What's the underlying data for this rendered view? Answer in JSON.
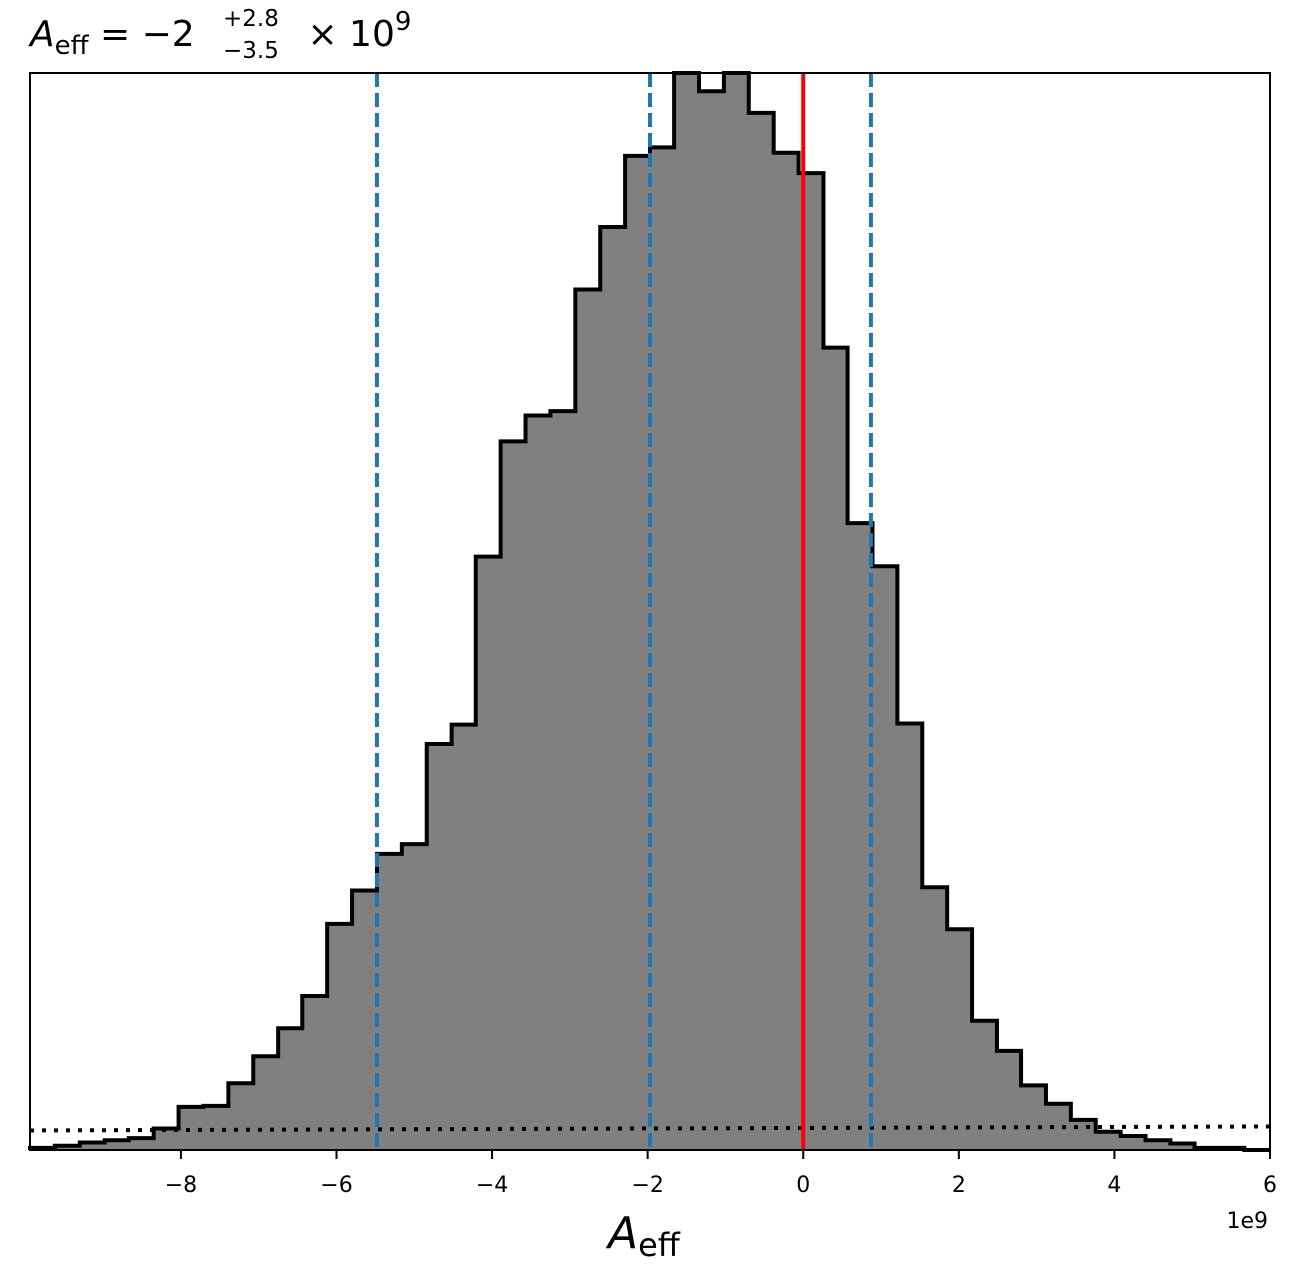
{
  "chart_data": {
    "type": "histogram",
    "title": {
      "symbol": "A",
      "subscript": "eff",
      "equals": " = ",
      "median": "−2",
      "err_plus": "+2.8",
      "err_minus": "−3.5",
      "times": " × 10",
      "exponent": "9"
    },
    "xlabel": {
      "symbol": "A",
      "subscript": "eff"
    },
    "x_offset_label": "1e9",
    "xlim": [
      -9.94,
      6
    ],
    "ylim": [
      0,
      1
    ],
    "x_ticks": [
      -8,
      -6,
      -4,
      -2,
      0,
      2,
      4,
      6
    ],
    "x_tick_labels": [
      "−8",
      "−6",
      "−4",
      "−2",
      "0",
      "2",
      "4",
      "6"
    ],
    "bin_edges": [
      -9.94,
      -9.62,
      -9.3,
      -8.98,
      -8.67,
      -8.35,
      -8.03,
      -7.71,
      -7.39,
      -7.07,
      -6.75,
      -6.44,
      -6.12,
      -5.8,
      -5.48,
      -5.16,
      -4.84,
      -4.52,
      -4.21,
      -3.89,
      -3.57,
      -3.25,
      -2.93,
      -2.61,
      -2.29,
      -1.97,
      -1.66,
      -1.34,
      -1.02,
      -0.7,
      -0.38,
      -0.06,
      0.26,
      0.57,
      0.89,
      1.21,
      1.53,
      1.85,
      2.17,
      2.49,
      2.8,
      3.12,
      3.44,
      3.76,
      4.08,
      4.4,
      4.72,
      5.03,
      5.35,
      5.67,
      6.0
    ],
    "counts": [
      0.002,
      0.004,
      0.007,
      0.009,
      0.011,
      0.02,
      0.04,
      0.041,
      0.062,
      0.087,
      0.113,
      0.143,
      0.21,
      0.241,
      0.275,
      0.284,
      0.377,
      0.395,
      0.551,
      0.658,
      0.682,
      0.686,
      0.799,
      0.857,
      0.923,
      0.931,
      1.0,
      0.983,
      1.018,
      0.963,
      0.926,
      0.907,
      0.745,
      0.582,
      0.542,
      0.396,
      0.244,
      0.205,
      0.12,
      0.092,
      0.06,
      0.043,
      0.028,
      0.017,
      0.013,
      0.009,
      0.006,
      0.002,
      0.002,
      0.0
    ],
    "reference_lines": [
      {
        "x": -5.48,
        "style": "dashed",
        "color": "#1f77b4"
      },
      {
        "x": -1.97,
        "style": "dashed",
        "color": "#1f77b4"
      },
      {
        "x": 0.87,
        "style": "dashed",
        "color": "#1f77b4"
      },
      {
        "x": 0.0,
        "style": "solid",
        "color": "#ff0000"
      }
    ],
    "prior_level": 0.02,
    "colors": {
      "fill": "#808080",
      "outline": "#000000",
      "quantiles": "#1f77b4",
      "truth": "#ff0000",
      "prior": "#000000"
    },
    "grid": false
  }
}
